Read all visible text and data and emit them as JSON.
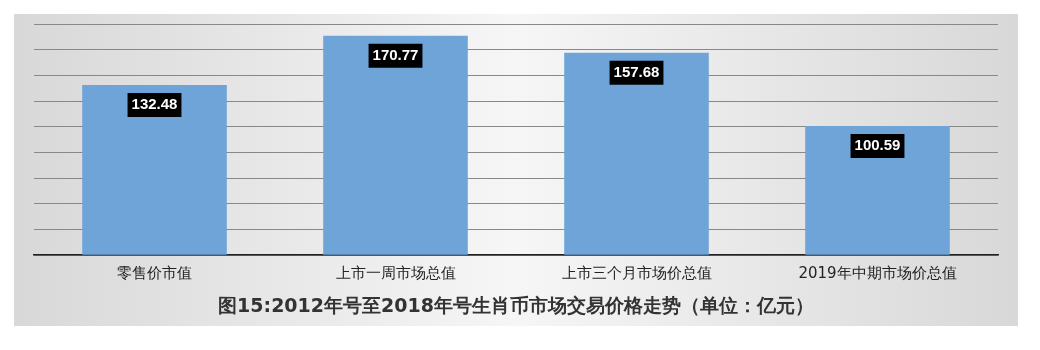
{
  "chart_data": {
    "type": "bar",
    "title": "图15:2012年号至2018年号生肖币市场交易价格走势（单位：亿元）",
    "categories": [
      "零售价市值",
      "上市一周市场总值",
      "上市三个月市场价总值",
      "2019年中期市场价总值"
    ],
    "values": [
      132.48,
      170.77,
      157.68,
      100.59
    ],
    "color": "#6fa4d9",
    "data_labels": true,
    "grid": "y",
    "tick_labels": "x",
    "ylim": [
      0,
      180
    ],
    "yticks": [
      {
        "value": 0,
        "label": null
      },
      {
        "value": 20,
        "label": null
      },
      {
        "value": 40,
        "label": null
      },
      {
        "value": 60,
        "label": null
      },
      {
        "value": 80,
        "label": null
      },
      {
        "value": 100,
        "label": null
      },
      {
        "value": 120,
        "label": null
      },
      {
        "value": 140,
        "label": null
      },
      {
        "value": 160,
        "label": null
      },
      {
        "value": 180,
        "label": null
      }
    ]
  }
}
